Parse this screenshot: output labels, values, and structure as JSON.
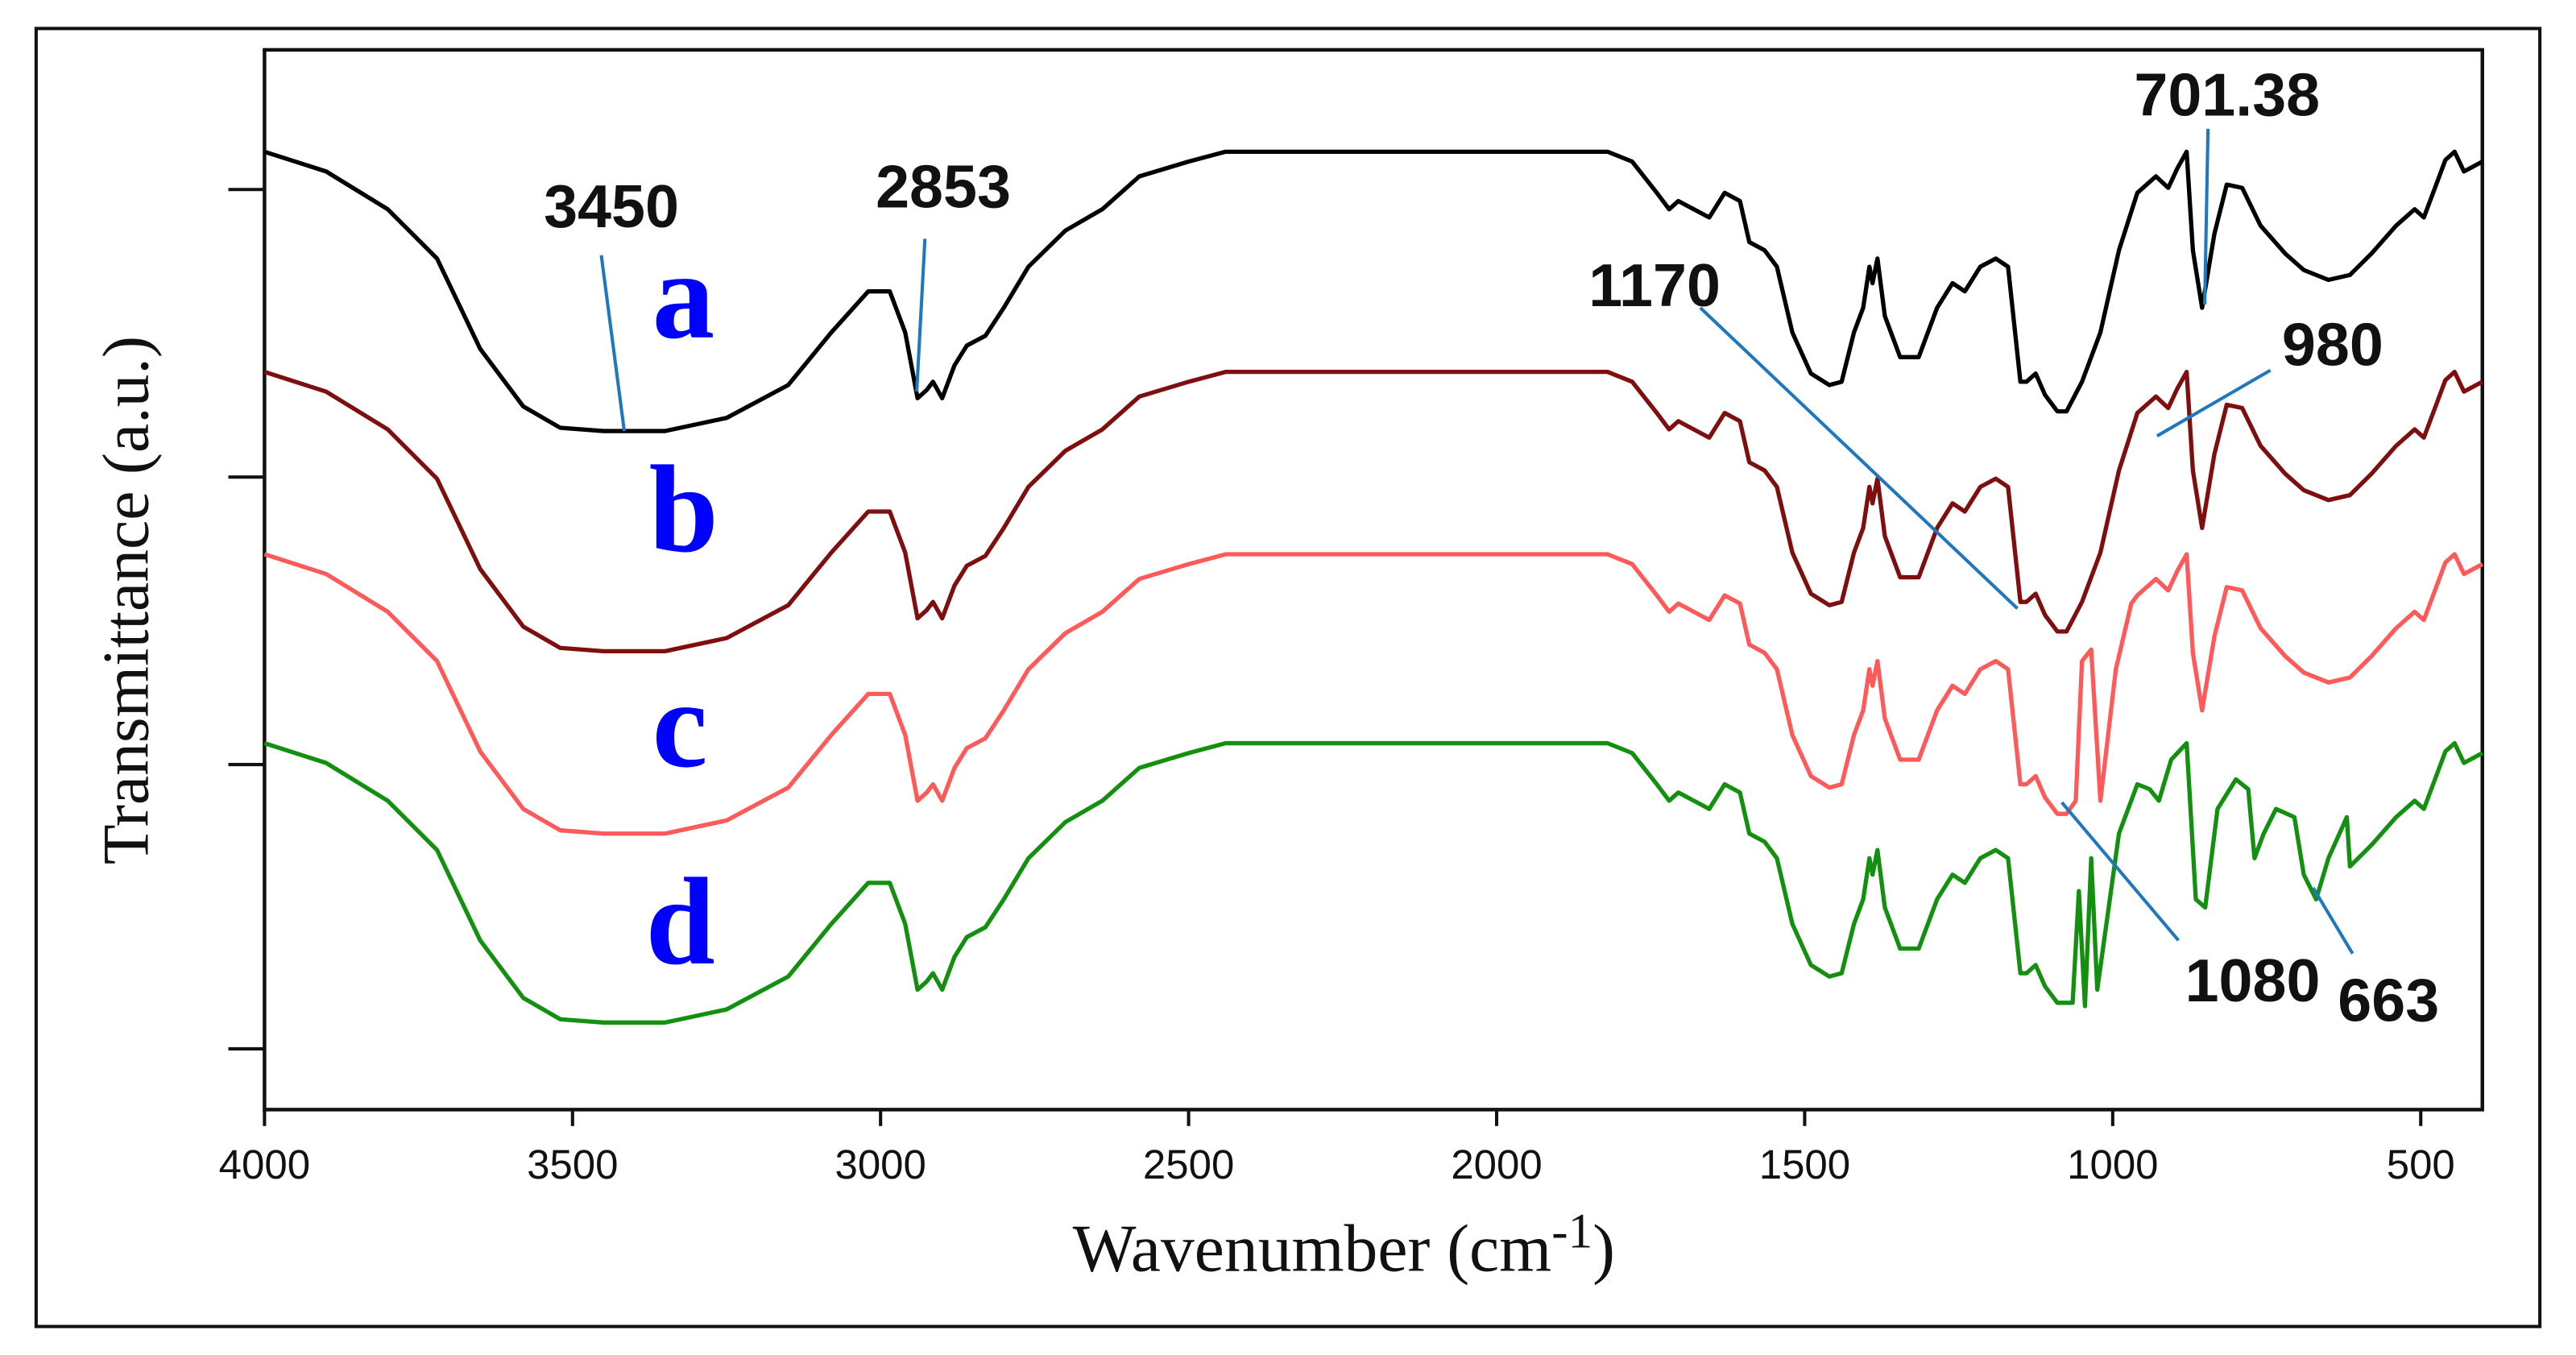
{
  "chart_data": {
    "type": "line",
    "title": "",
    "xlabel": "Wavenumber (cm",
    "xlabel_superscript": "-1",
    "xlabel_close": ")",
    "ylabel": "Transmittance (a.u.)",
    "xlim": [
      4000,
      400
    ],
    "x_reversed": true,
    "xticks": [
      4000,
      3500,
      3000,
      2500,
      2000,
      1500,
      1000,
      500
    ],
    "xtick_labels": [
      "4000",
      "3500",
      "3000",
      "2500",
      "2000",
      "1500",
      "1000",
      "500"
    ],
    "grid": false,
    "legend": "inline series labels",
    "series": [
      {
        "name": "a",
        "color": "#000000",
        "label_color": "#0000ff",
        "baseline": 92,
        "minimum": 262
      },
      {
        "name": "b",
        "color": "#7f0f0f",
        "label_color": "#0000ff",
        "baseline": 226,
        "minimum": 396
      },
      {
        "name": "c",
        "color": "#ff5a5a",
        "label_color": "#0000ff",
        "baseline": 337,
        "minimum": 507
      },
      {
        "name": "d",
        "color": "#13900f",
        "label_color": "#0000ff",
        "baseline": 452,
        "minimum": 622
      }
    ],
    "annotations": [
      {
        "text": "3450",
        "wavenumber": 3450
      },
      {
        "text": "2853",
        "wavenumber": 2853
      },
      {
        "text": "701.38",
        "wavenumber": 701.38
      },
      {
        "text": "1170",
        "wavenumber": 1170
      },
      {
        "text": "980",
        "wavenumber": 980
      },
      {
        "text": "1080",
        "wavenumber": 1080
      },
      {
        "text": "663",
        "wavenumber": 663
      }
    ],
    "annotation_line_color": "#1f77c0"
  }
}
